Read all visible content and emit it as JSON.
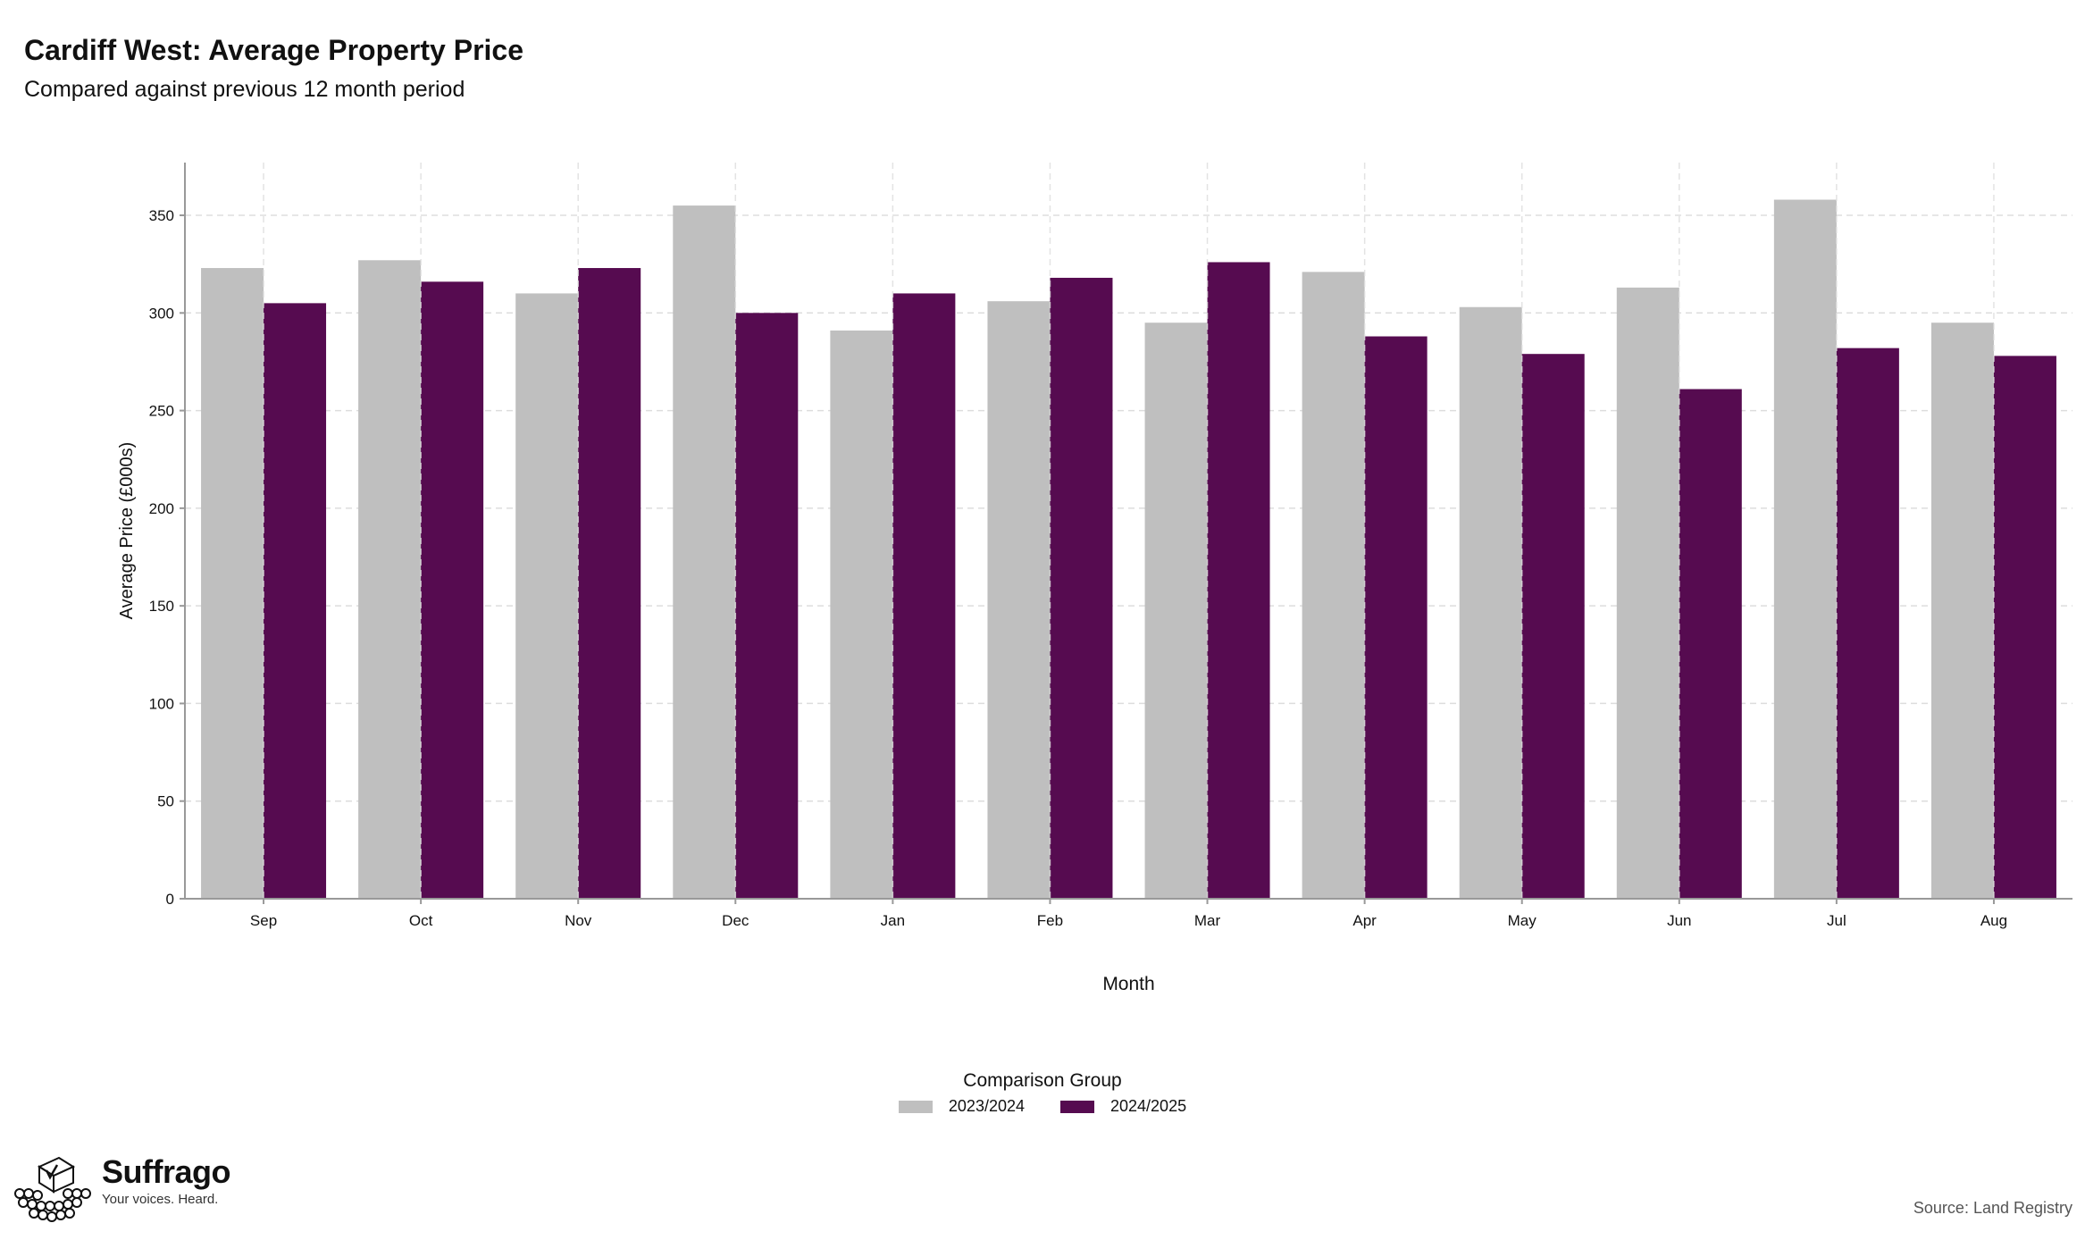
{
  "header": {
    "title": "Cardiff West: Average Property Price",
    "subtitle": "Compared against previous 12 month period"
  },
  "legend": {
    "title": "Comparison Group",
    "items": [
      {
        "label": "2023/2024",
        "color": "#bfbfbf"
      },
      {
        "label": "2024/2025",
        "color": "#560b50"
      }
    ]
  },
  "branding": {
    "name": "Suffrago",
    "tagline": "Your voices. Heard.",
    "icon": "ballot-box-icon"
  },
  "source": "Source: Land Registry",
  "chart_data": {
    "type": "bar",
    "xlabel": "Month",
    "ylabel": "Average Price (£000s)",
    "categories": [
      "Sep",
      "Oct",
      "Nov",
      "Dec",
      "Jan",
      "Feb",
      "Mar",
      "Apr",
      "May",
      "Jun",
      "Jul",
      "Aug"
    ],
    "series": [
      {
        "name": "2023/2024",
        "color": "#bfbfbf",
        "values": [
          323,
          327,
          310,
          355,
          291,
          306,
          295,
          321,
          303,
          313,
          358,
          295
        ]
      },
      {
        "name": "2024/2025",
        "color": "#560b50",
        "values": [
          305,
          316,
          323,
          300,
          310,
          318,
          326,
          288,
          279,
          261,
          282,
          278
        ]
      }
    ],
    "ylim": [
      0,
      377
    ],
    "yticks": [
      0,
      50,
      100,
      150,
      200,
      250,
      300,
      350
    ],
    "grid": true,
    "legend_position": "bottom"
  }
}
